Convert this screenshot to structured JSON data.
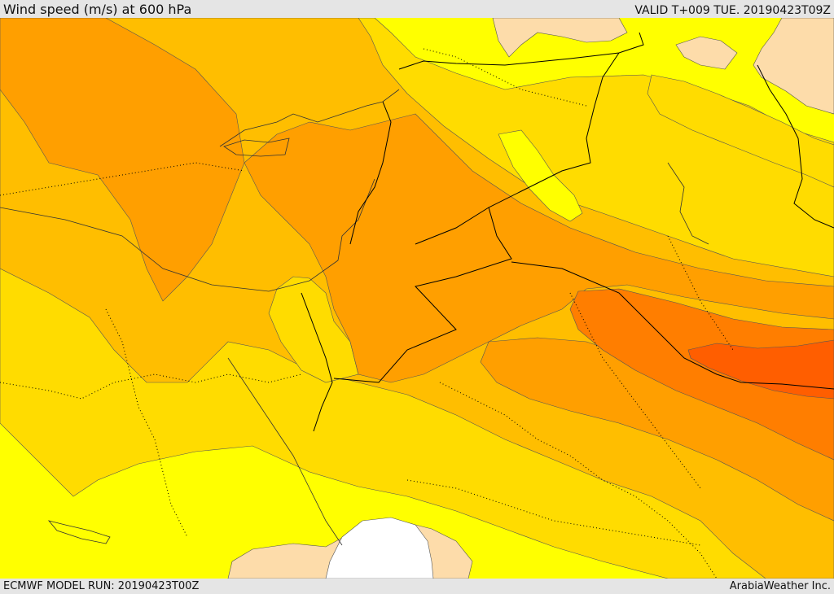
{
  "header": {
    "title": "Wind speed (m/s) at 600 hPa",
    "valid": "VALID T+009 TUE. 20190423T09Z"
  },
  "footer": {
    "model_run": "ECMWF MODEL RUN: 20190423T00Z",
    "credit": "ArabiaWeather Inc."
  },
  "map": {
    "variable": "wind speed",
    "units": "m/s",
    "pressure_level_hpa": 600,
    "shading_colors": {
      "lowest": "#ffffff",
      "pale": "#fddcaa",
      "yellow": "#ffff00",
      "gold": "#ffdc00",
      "amber": "#ffbe00",
      "orange": "#ff9f00",
      "dark_orange": "#ff7e00",
      "red_orange": "#ff5e00"
    },
    "line_colors": {
      "country_border": "#000000",
      "admin_border_dotted": "#000000",
      "contour": "#555555"
    }
  }
}
